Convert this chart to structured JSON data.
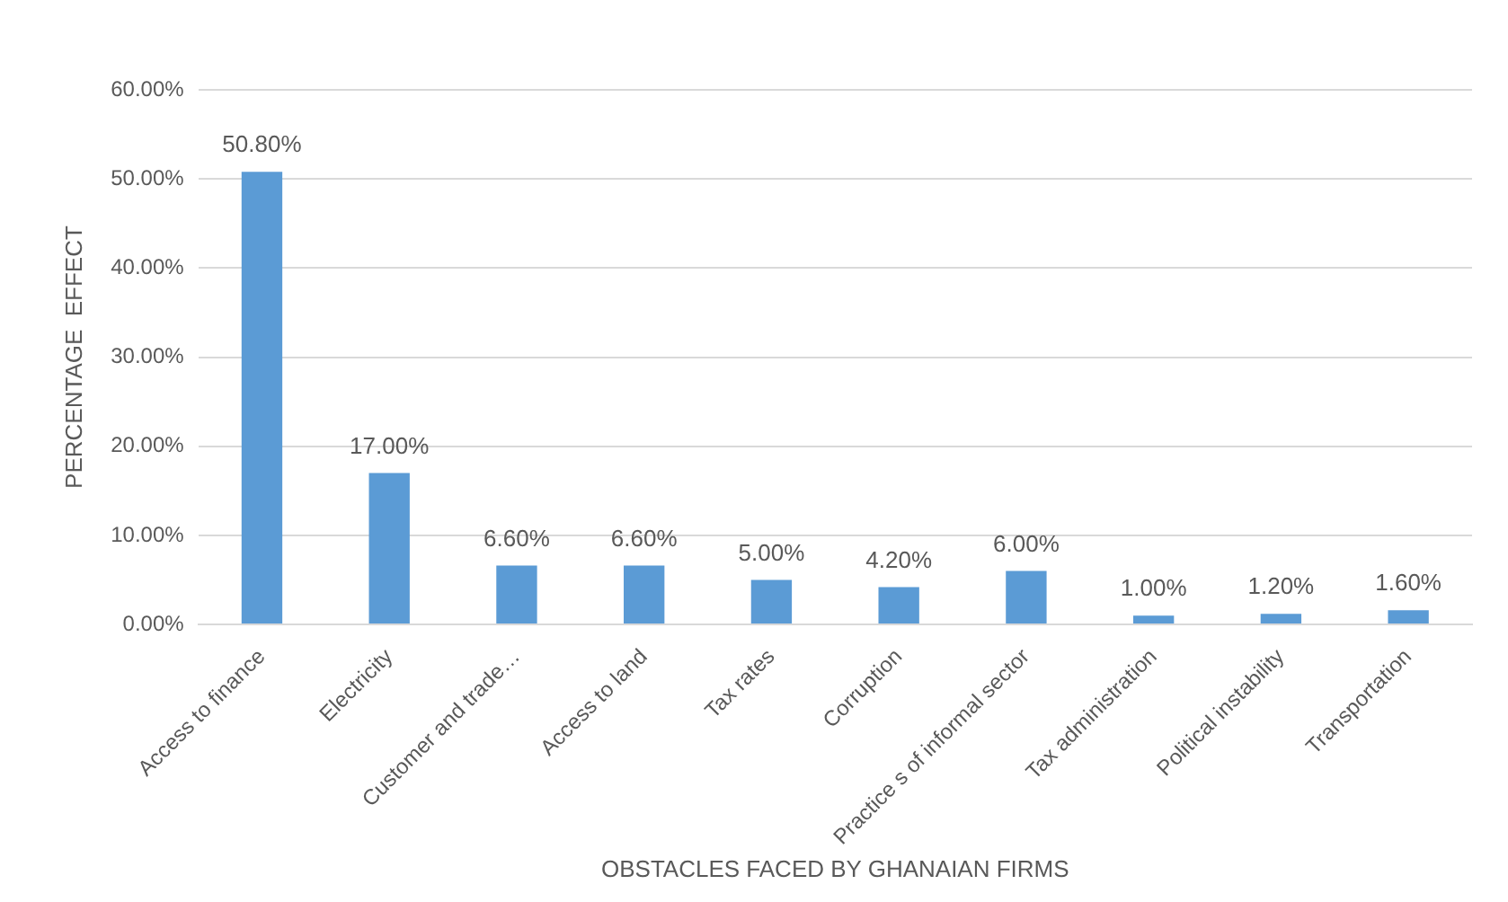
{
  "chart_data": {
    "type": "bar",
    "xlabel": "OBSTACLES FACED BY GHANAIAN FIRMS",
    "ylabel": "PERCENTAGE  EFFECT",
    "categories": [
      "Access to finance",
      "Electricity",
      "Customer and trade…",
      "Access to land",
      "Tax rates",
      "Corruption",
      "Practice s of informal sector",
      "Tax administration",
      "Political instability",
      "Transportation"
    ],
    "values": [
      50.8,
      17.0,
      6.6,
      6.6,
      5.0,
      4.2,
      6.0,
      1.0,
      1.2,
      1.6
    ],
    "value_labels": [
      "50.80%",
      "17.00%",
      "6.60%",
      "6.60%",
      "5.00%",
      "4.20%",
      "6.00%",
      "1.00%",
      "1.20%",
      "1.60%"
    ],
    "color": "#5b9bd5",
    "ylim": [
      0,
      60
    ],
    "yticks": [
      {
        "value": 0,
        "label": "0.00%"
      },
      {
        "value": 10,
        "label": "10.00%"
      },
      {
        "value": 20,
        "label": "20.00%"
      },
      {
        "value": 30,
        "label": "30.00%"
      },
      {
        "value": 40,
        "label": "40.00%"
      },
      {
        "value": 50,
        "label": "50.00%"
      },
      {
        "value": 60,
        "label": "60.00%"
      }
    ],
    "grid": "y",
    "legend": false
  }
}
